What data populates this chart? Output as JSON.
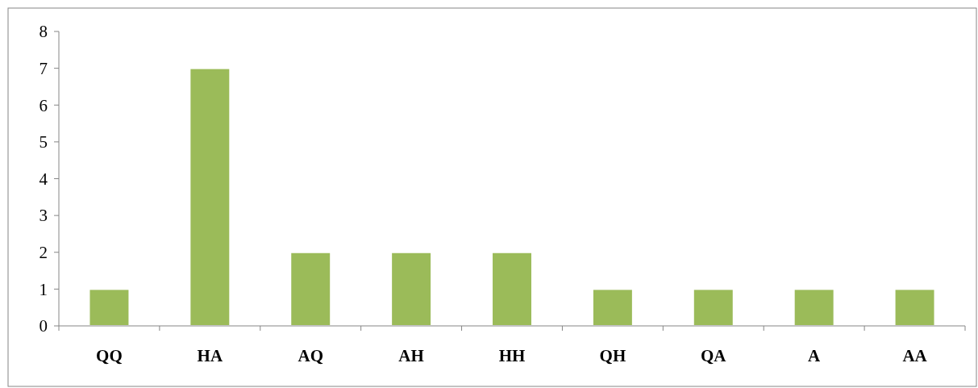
{
  "chart_data": {
    "type": "bar",
    "categories": [
      "QQ",
      "HA",
      "AQ",
      "AH",
      "HH",
      "QH",
      "QA",
      "A",
      "AA"
    ],
    "values": [
      1,
      7,
      2,
      2,
      2,
      1,
      1,
      1,
      1
    ],
    "color": "#9bbb59",
    "ylim": [
      0,
      8
    ],
    "yticks": [
      0,
      1,
      2,
      3,
      4,
      5,
      6,
      7,
      8
    ],
    "grid": false
  }
}
